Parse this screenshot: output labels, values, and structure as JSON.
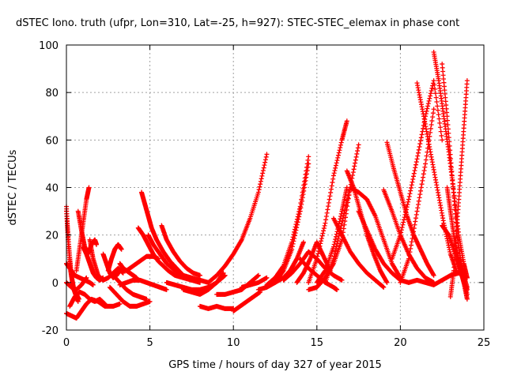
{
  "chart_data": {
    "type": "scatter",
    "title": "dSTEC Iono. truth (ufpr, Lon=310, Lat=-25, h=927): STEC-STEC_elemax in phase cont",
    "xlabel": "GPS time / hours of day 327 of year 2015",
    "ylabel": "dSTEC  / TECUs",
    "xlim": [
      0,
      25
    ],
    "ylim": [
      -20,
      100
    ],
    "x_ticks": [
      0,
      5,
      10,
      15,
      20,
      25
    ],
    "y_ticks": [
      -20,
      0,
      20,
      40,
      60,
      80,
      100
    ],
    "x_tick_labels": [
      "0",
      "5",
      "10",
      "15",
      "20",
      "25"
    ],
    "y_tick_labels": [
      "-20",
      "0",
      "20",
      "40",
      "60",
      "80",
      "100"
    ],
    "grid": true,
    "marker": "+",
    "color": "#ff0000",
    "series": [
      {
        "x": [
          0.0,
          0.1,
          0.25,
          0.4,
          0.55,
          0.7
        ],
        "y": [
          32,
          18,
          5,
          -2,
          -5,
          -8
        ]
      },
      {
        "x": [
          0.0,
          0.15,
          0.3,
          0.45,
          0.6,
          0.75
        ],
        "y": [
          30,
          15,
          3,
          -3,
          -5,
          -7
        ]
      },
      {
        "x": [
          0.0,
          0.2,
          0.5,
          0.8,
          1.1,
          1.4,
          1.6
        ],
        "y": [
          8,
          6,
          3,
          2,
          1,
          0,
          -1
        ]
      },
      {
        "x": [
          0.0,
          0.3,
          0.6,
          0.9,
          1.2
        ],
        "y": [
          0,
          -2,
          -3,
          -1,
          2
        ]
      },
      {
        "x": [
          0.0,
          0.3,
          0.6,
          0.9,
          1.2,
          1.5,
          1.9,
          2.3,
          2.8,
          3.2
        ],
        "y": [
          -13,
          -14,
          -15,
          -12,
          -9,
          -7,
          -8,
          -10,
          -10,
          -9
        ]
      },
      {
        "x": [
          0.2,
          0.5,
          0.8,
          1.1,
          1.4,
          1.7,
          2.0,
          2.3
        ],
        "y": [
          -10,
          -6,
          -4,
          -5,
          -7,
          -8,
          -7,
          -9
        ]
      },
      {
        "x": [
          0.6,
          0.8,
          1.0,
          1.2,
          1.35
        ],
        "y": [
          5,
          15,
          25,
          35,
          40
        ]
      },
      {
        "x": [
          0.7,
          0.9,
          1.1,
          1.3,
          1.5,
          1.7,
          1.8
        ],
        "y": [
          30,
          22,
          15,
          12,
          16,
          18,
          16
        ]
      },
      {
        "x": [
          1.0,
          1.2,
          1.4,
          1.6,
          1.8,
          2.0,
          2.2
        ],
        "y": [
          15,
          12,
          8,
          4,
          2,
          1,
          2
        ]
      },
      {
        "x": [
          1.4,
          1.6,
          1.9,
          2.2,
          2.5,
          2.8,
          3.1,
          3.4
        ],
        "y": [
          18,
          10,
          3,
          1,
          2,
          4,
          6,
          4
        ]
      },
      {
        "x": [
          2.2,
          2.4,
          2.6,
          2.8,
          3.0,
          3.2
        ],
        "y": [
          12,
          8,
          4,
          2,
          3,
          5
        ]
      },
      {
        "x": [
          2.5,
          2.7,
          2.9,
          3.1,
          3.3
        ],
        "y": [
          5,
          10,
          14,
          16,
          14
        ]
      },
      {
        "x": [
          2.6,
          3.0,
          3.4,
          3.8,
          4.2,
          4.6,
          5.0
        ],
        "y": [
          -2,
          -5,
          -8,
          -10,
          -10,
          -9,
          -8
        ]
      },
      {
        "x": [
          2.8,
          3.2,
          3.6,
          4.0,
          4.4,
          4.8
        ],
        "y": [
          3,
          0,
          -3,
          -5,
          -6,
          -7
        ]
      },
      {
        "x": [
          3.2,
          3.6,
          4.0,
          4.4,
          4.8,
          5.2,
          5.6,
          6.0
        ],
        "y": [
          -1,
          0,
          1,
          1,
          0,
          -1,
          -2,
          -3
        ]
      },
      {
        "x": [
          3.2,
          3.4,
          3.6,
          3.8,
          4.0,
          4.2
        ],
        "y": [
          8,
          6,
          5,
          4,
          3,
          2
        ]
      },
      {
        "x": [
          3.6,
          4.0,
          4.4,
          4.8,
          5.2,
          5.5
        ],
        "y": [
          5,
          7,
          9,
          11,
          11,
          10
        ]
      },
      {
        "x": [
          4.3,
          4.6,
          4.9,
          5.2,
          5.5,
          5.8,
          6.1,
          6.5,
          7.0,
          7.5
        ],
        "y": [
          23,
          20,
          16,
          12,
          9,
          7,
          5,
          3,
          2,
          1
        ]
      },
      {
        "x": [
          4.5,
          4.7,
          4.9,
          5.1,
          5.4,
          5.8,
          6.2,
          6.6,
          7.0,
          7.5,
          8.0
        ],
        "y": [
          38,
          33,
          28,
          23,
          18,
          13,
          9,
          6,
          3,
          1,
          0
        ]
      },
      {
        "x": [
          4.9,
          5.2,
          5.6,
          6.0,
          6.5,
          7.0,
          7.5,
          8.0,
          8.5
        ],
        "y": [
          20,
          16,
          12,
          8,
          5,
          3,
          2,
          1,
          0
        ]
      },
      {
        "x": [
          5.7,
          6.0,
          6.4,
          6.8,
          7.2,
          7.6,
          8.0
        ],
        "y": [
          24,
          18,
          13,
          9,
          6,
          4,
          3
        ]
      },
      {
        "x": [
          6.0,
          6.5,
          7.0,
          7.5,
          8.0,
          8.5,
          9.0,
          9.5
        ],
        "y": [
          0,
          -1,
          -2,
          -3,
          -3,
          -2,
          0,
          3
        ]
      },
      {
        "x": [
          7.0,
          7.5,
          8.0,
          8.5,
          9.0,
          9.4
        ],
        "y": [
          -3,
          -4,
          -5,
          -3,
          0,
          4
        ]
      },
      {
        "x": [
          8.0,
          8.5,
          9.0,
          9.5,
          10.0
        ],
        "y": [
          -10,
          -11,
          -10,
          -11,
          -11
        ]
      },
      {
        "x": [
          8.5,
          9.0,
          9.5,
          10.0,
          10.5,
          11.0,
          11.5,
          12.0
        ],
        "y": [
          0,
          3,
          7,
          12,
          18,
          27,
          38,
          54
        ]
      },
      {
        "x": [
          9.0,
          9.5,
          10.0,
          10.5,
          11.0,
          11.5
        ],
        "y": [
          -5,
          -5,
          -4,
          -3,
          0,
          3
        ]
      },
      {
        "x": [
          10.0,
          10.4,
          10.8,
          11.2,
          11.6
        ],
        "y": [
          -12,
          -10,
          -8,
          -6,
          -4
        ]
      },
      {
        "x": [
          10.5,
          11.0,
          11.5,
          12.0
        ],
        "y": [
          -2,
          -1,
          0,
          2
        ]
      },
      {
        "x": [
          11.5,
          12.0,
          12.5,
          13.0,
          13.5,
          14.0,
          14.5
        ],
        "y": [
          -3,
          -2,
          0,
          5,
          14,
          30,
          50
        ]
      },
      {
        "x": [
          12.0,
          12.5,
          13.0,
          13.5,
          14.0,
          14.5
        ],
        "y": [
          -1,
          2,
          7,
          17,
          32,
          53
        ]
      },
      {
        "x": [
          12.5,
          13.0,
          13.4,
          13.8,
          14.2
        ],
        "y": [
          0,
          2,
          5,
          10,
          17
        ]
      },
      {
        "x": [
          13.0,
          13.5,
          14.0,
          14.5,
          15.0,
          15.5,
          16.0,
          16.5
        ],
        "y": [
          1,
          4,
          8,
          13,
          10,
          6,
          3,
          1
        ]
      },
      {
        "x": [
          13.8,
          14.2,
          14.6,
          15.0,
          15.4,
          15.8
        ],
        "y": [
          0,
          4,
          10,
          17,
          11,
          5
        ]
      },
      {
        "x": [
          14.0,
          14.5,
          15.0,
          15.5,
          16.0,
          16.2
        ],
        "y": [
          10,
          6,
          3,
          0,
          -2,
          -3
        ]
      },
      {
        "x": [
          14.5,
          15.0,
          15.5,
          16.0,
          16.5,
          16.8
        ],
        "y": [
          0,
          10,
          25,
          45,
          60,
          68
        ]
      },
      {
        "x": [
          14.5,
          15.0,
          15.5,
          16.0,
          16.5,
          17.0
        ],
        "y": [
          -3,
          -2,
          2,
          8,
          18,
          40
        ]
      },
      {
        "x": [
          15.0,
          15.5,
          16.0,
          16.5,
          16.8
        ],
        "y": [
          0,
          5,
          15,
          30,
          40
        ]
      },
      {
        "x": [
          15.5,
          16.0,
          16.5,
          17.0,
          17.5
        ],
        "y": [
          0,
          10,
          25,
          40,
          58
        ]
      },
      {
        "x": [
          16.0,
          16.5,
          17.0,
          17.5,
          18.0,
          18.5,
          19.0
        ],
        "y": [
          27,
          20,
          13,
          8,
          4,
          1,
          -2
        ]
      },
      {
        "x": [
          16.8,
          17.2,
          17.6,
          18.0,
          18.4,
          18.8,
          19.2
        ],
        "y": [
          47,
          40,
          30,
          20,
          12,
          5,
          0
        ]
      },
      {
        "x": [
          17.0,
          17.5,
          18.0,
          18.5,
          19.0,
          19.5,
          20.0
        ],
        "y": [
          40,
          38,
          35,
          28,
          18,
          8,
          2
        ]
      },
      {
        "x": [
          17.5,
          18.0,
          18.5,
          19.0,
          19.5,
          20.0,
          20.5
        ],
        "y": [
          30,
          22,
          14,
          8,
          4,
          1,
          0
        ]
      },
      {
        "x": [
          19.0,
          19.5,
          20.0,
          20.5,
          21.0,
          21.5,
          22.0
        ],
        "y": [
          39,
          30,
          20,
          12,
          6,
          2,
          0
        ]
      },
      {
        "x": [
          19.2,
          19.6,
          20.0,
          20.4,
          20.8,
          21.2,
          21.6,
          22.0
        ],
        "y": [
          59,
          48,
          38,
          28,
          20,
          14,
          8,
          3
        ]
      },
      {
        "x": [
          19.5,
          20.0,
          20.5,
          21.0,
          21.5,
          22.0,
          22.5
        ],
        "y": [
          10,
          20,
          35,
          52,
          70,
          85,
          60
        ]
      },
      {
        "x": [
          20.0,
          20.5,
          21.0,
          21.5,
          22.0
        ],
        "y": [
          0,
          10,
          30,
          50,
          73
        ]
      },
      {
        "x": [
          20.5,
          21.0,
          21.5,
          22.0,
          22.5,
          23.0,
          23.5,
          24.0
        ],
        "y": [
          0,
          1,
          0,
          -1,
          1,
          3,
          4,
          2
        ]
      },
      {
        "x": [
          21.0,
          21.4,
          21.8,
          22.2,
          22.6,
          23.0,
          23.4
        ],
        "y": [
          84,
          70,
          55,
          40,
          25,
          12,
          4
        ]
      },
      {
        "x": [
          22.0,
          22.3,
          22.6,
          22.9,
          23.2,
          23.5,
          23.8,
          24.0
        ],
        "y": [
          97,
          85,
          70,
          55,
          38,
          20,
          8,
          2
        ]
      },
      {
        "x": [
          22.5,
          22.8,
          23.1,
          23.4,
          23.7,
          24.0
        ],
        "y": [
          92,
          70,
          45,
          20,
          5,
          -5
        ]
      },
      {
        "x": [
          22.8,
          23.0,
          23.2,
          23.4,
          23.6,
          23.8,
          24.0
        ],
        "y": [
          40,
          30,
          20,
          10,
          5,
          0,
          -3
        ]
      },
      {
        "x": [
          23.0,
          23.2,
          23.4,
          23.6,
          23.8,
          24.0
        ],
        "y": [
          -6,
          5,
          25,
          45,
          65,
          85
        ]
      },
      {
        "x": [
          22.5,
          22.9,
          23.3,
          23.7,
          24.0
        ],
        "y": [
          24,
          20,
          12,
          5,
          -2
        ]
      },
      {
        "x": [
          23.2,
          23.5,
          23.8,
          24.0
        ],
        "y": [
          20,
          10,
          0,
          -7
        ]
      }
    ]
  }
}
